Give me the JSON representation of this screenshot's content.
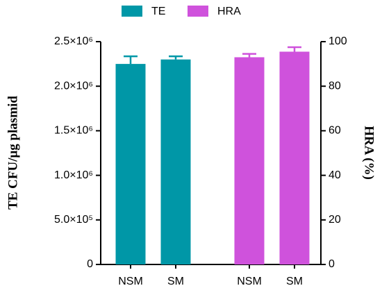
{
  "chart_data": {
    "type": "bar",
    "categories": [
      "NSM",
      "SM",
      "NSM",
      "SM"
    ],
    "series": [
      {
        "name": "TE",
        "color": "#0097a7",
        "values": [
          2250000,
          2300000,
          null,
          null
        ],
        "errors": [
          85000,
          35000,
          null,
          null
        ]
      },
      {
        "name": "HRA",
        "color": "#cf52dc",
        "axis": "y2",
        "values": [
          null,
          null,
          93,
          95.5
        ],
        "errors": [
          null,
          null,
          1.5,
          2
        ]
      }
    ],
    "ylabel": "TE CFU/μg plasmid",
    "y2label": "HRA (%)",
    "ylim": [
      0,
      2500000
    ],
    "yticks": [
      0,
      {
        "value": 500000,
        "label": "5.0×10⁵"
      },
      {
        "value": 1000000,
        "label": "1.0×10⁶"
      },
      {
        "value": 1500000,
        "label": "1.5×10⁶"
      },
      {
        "value": 2000000,
        "label": "2.0×10⁶"
      },
      {
        "value": 2500000,
        "label": "2.5×10⁶"
      }
    ],
    "y2lim": [
      0,
      100
    ],
    "y2ticks": [
      0,
      20,
      40,
      60,
      80,
      100
    ],
    "legend": "top"
  }
}
